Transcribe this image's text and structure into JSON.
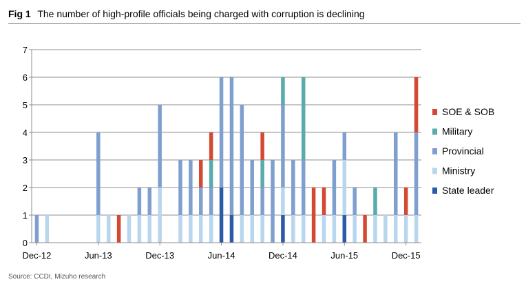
{
  "figure": {
    "label": "Fig 1",
    "title": "The number of high-profile officials being charged with corruption is declining",
    "source": "Source: CCDI, Mizuho research"
  },
  "chart_data": {
    "type": "bar",
    "stacked": true,
    "categories": [
      "Dec-12",
      "Jan-13",
      "Feb-13",
      "Mar-13",
      "Apr-13",
      "May-13",
      "Jun-13",
      "Jul-13",
      "Aug-13",
      "Sep-13",
      "Oct-13",
      "Nov-13",
      "Dec-13",
      "Jan-14",
      "Feb-14",
      "Mar-14",
      "Apr-14",
      "May-14",
      "Jun-14",
      "Jul-14",
      "Aug-14",
      "Sep-14",
      "Oct-14",
      "Nov-14",
      "Dec-14",
      "Jan-15",
      "Feb-15",
      "Mar-15",
      "Apr-15",
      "May-15",
      "Jun-15",
      "Jul-15",
      "Aug-15",
      "Sep-15",
      "Oct-15",
      "Nov-15",
      "Dec-15",
      "Jan-16"
    ],
    "xtick_labels": [
      "Dec-12",
      "Jun-13",
      "Dec-13",
      "Jun-14",
      "Dec-14",
      "Jun-15",
      "Dec-15"
    ],
    "xtick_index": [
      0,
      6,
      12,
      18,
      24,
      30,
      36
    ],
    "ylim": [
      0,
      7
    ],
    "yticks": [
      0,
      1,
      2,
      3,
      4,
      5,
      6,
      7
    ],
    "grid": true,
    "legend_position": "right",
    "series": [
      {
        "name": "State leader",
        "color": "#2a5aa8",
        "values": [
          0,
          0,
          0,
          0,
          0,
          0,
          0,
          0,
          0,
          0,
          0,
          0,
          0,
          0,
          0,
          0,
          0,
          0,
          2,
          1,
          0,
          0,
          0,
          0,
          1,
          0,
          0,
          0,
          0,
          0,
          1,
          0,
          0,
          0,
          0,
          0,
          0,
          0
        ]
      },
      {
        "name": "Ministry",
        "color": "#b9d6ef",
        "values": [
          0,
          1,
          0,
          0,
          0,
          0,
          1,
          1,
          0,
          1,
          1,
          1,
          2,
          0,
          1,
          1,
          1,
          1,
          0,
          0,
          1,
          1,
          1,
          0,
          1,
          1,
          1,
          0,
          1,
          1,
          2,
          1,
          0,
          1,
          1,
          1,
          1,
          1
        ]
      },
      {
        "name": "Provincial",
        "color": "#7f9fcf",
        "values": [
          1,
          0,
          0,
          0,
          0,
          0,
          3,
          0,
          0,
          0,
          1,
          1,
          3,
          0,
          2,
          2,
          1,
          1,
          4,
          5,
          4,
          2,
          1,
          3,
          3,
          2,
          2,
          0,
          0,
          2,
          1,
          1,
          0,
          0,
          0,
          3,
          0,
          3
        ]
      },
      {
        "name": "Military",
        "color": "#5aabab",
        "values": [
          0,
          0,
          0,
          0,
          0,
          0,
          0,
          0,
          0,
          0,
          0,
          0,
          0,
          0,
          0,
          0,
          0,
          1,
          0,
          0,
          0,
          0,
          1,
          0,
          1,
          0,
          3,
          0,
          0,
          0,
          0,
          0,
          0,
          1,
          0,
          0,
          0,
          0
        ]
      },
      {
        "name": "SOE & SOB",
        "color": "#d24a32",
        "values": [
          0,
          0,
          0,
          0,
          0,
          0,
          0,
          0,
          1,
          0,
          0,
          0,
          0,
          0,
          0,
          0,
          1,
          1,
          0,
          0,
          0,
          0,
          1,
          0,
          0,
          0,
          0,
          2,
          1,
          0,
          0,
          0,
          1,
          0,
          0,
          0,
          1,
          2
        ]
      }
    ]
  }
}
